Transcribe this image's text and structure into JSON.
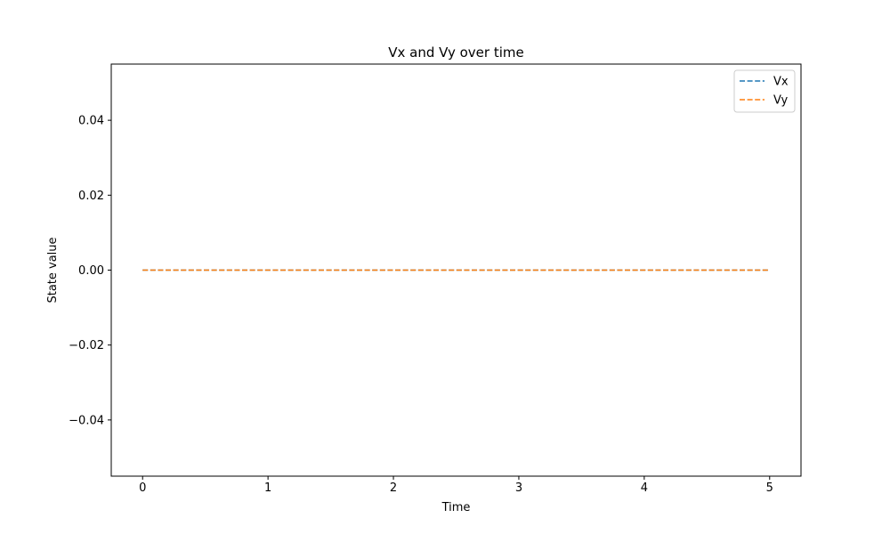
{
  "chart_data": {
    "type": "line",
    "title": "Vx and Vy over time",
    "xlabel": "Time",
    "ylabel": "State value",
    "xlim": [
      -0.25,
      5.25
    ],
    "ylim": [
      -0.055,
      0.055
    ],
    "xticks": [
      0,
      1,
      2,
      3,
      4,
      5
    ],
    "xtick_labels": [
      "0",
      "1",
      "2",
      "3",
      "4",
      "5"
    ],
    "yticks": [
      -0.04,
      -0.02,
      0.0,
      0.02,
      0.04
    ],
    "ytick_labels": [
      "−0.04",
      "−0.02",
      "0.00",
      "0.02",
      "0.04"
    ],
    "grid": false,
    "legend_position": "top-right",
    "series": [
      {
        "name": "Vx",
        "color": "#1f77b4",
        "style": "dashed",
        "x": [
          0,
          1,
          2,
          3,
          4,
          5
        ],
        "y": [
          0,
          0,
          0,
          0,
          0,
          0
        ]
      },
      {
        "name": "Vy",
        "color": "#ff7f0e",
        "style": "dashed",
        "x": [
          0,
          1,
          2,
          3,
          4,
          5
        ],
        "y": [
          0,
          0,
          0,
          0,
          0,
          0
        ]
      }
    ]
  }
}
